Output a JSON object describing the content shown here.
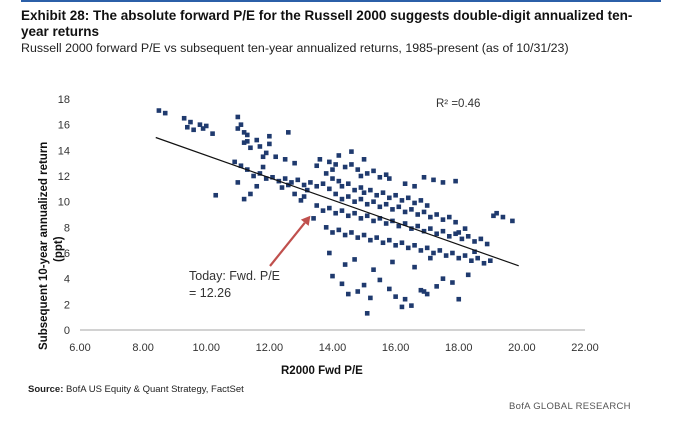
{
  "header": {
    "title": "Exhibit 28: The absolute forward P/E for the Russell 2000 suggests double-digit annualized ten-year returns",
    "subtitle": "Russell 2000 forward P/E vs subsequent ten-year annualized returns, 1985-present (as of 10/31/23)"
  },
  "footer": {
    "source_label": "Source:",
    "source_text": " BofA US Equity & Quant Strategy, FactSet",
    "brand": "BofA GLOBAL RESEARCH"
  },
  "chart_data": {
    "type": "scatter",
    "xlabel": "R2000 Fwd P/E",
    "ylabel_line1": "Subsequent  10-year annualized return",
    "ylabel_line2": "(ppt)",
    "xlim": [
      6,
      22
    ],
    "ylim": [
      0,
      18
    ],
    "x_ticks": [
      "6.00",
      "8.00",
      "10.00",
      "12.00",
      "14.00",
      "16.00",
      "18.00",
      "20.00",
      "22.00"
    ],
    "y_ticks": [
      "0",
      "2",
      "4",
      "6",
      "8",
      "10",
      "12",
      "14",
      "16",
      "18"
    ],
    "r_squared_label": "R² =0.46",
    "annotation_line1": "Today: Fwd. P/E",
    "annotation_line2": "= 12.26",
    "annotation_point": [
      13.3,
      8.9
    ],
    "trendline": [
      [
        8.4,
        15.0
      ],
      [
        19.9,
        5.0
      ]
    ],
    "colors": {
      "points": "#1f3a6e",
      "trendline": "#111111",
      "arrow": "#c0504d"
    },
    "points": [
      [
        8.5,
        17.1
      ],
      [
        8.7,
        16.9
      ],
      [
        9.3,
        16.5
      ],
      [
        9.5,
        16.2
      ],
      [
        9.6,
        15.6
      ],
      [
        9.8,
        16.0
      ],
      [
        9.9,
        15.7
      ],
      [
        10.0,
        15.9
      ],
      [
        10.2,
        15.3
      ],
      [
        9.4,
        15.8
      ],
      [
        11.0,
        16.6
      ],
      [
        11.1,
        16.0
      ],
      [
        11.2,
        15.4
      ],
      [
        11.0,
        15.7
      ],
      [
        11.2,
        14.6
      ],
      [
        11.3,
        15.2
      ],
      [
        11.6,
        14.8
      ],
      [
        11.7,
        14.3
      ],
      [
        12.0,
        14.5
      ],
      [
        11.3,
        14.7
      ],
      [
        11.9,
        13.8
      ],
      [
        12.2,
        13.5
      ],
      [
        12.5,
        13.3
      ],
      [
        12.8,
        13.0
      ],
      [
        12.6,
        15.4
      ],
      [
        12.0,
        15.1
      ],
      [
        11.4,
        14.2
      ],
      [
        11.8,
        13.5
      ],
      [
        10.9,
        13.1
      ],
      [
        11.1,
        12.8
      ],
      [
        11.3,
        12.5
      ],
      [
        11.5,
        12.0
      ],
      [
        11.7,
        12.2
      ],
      [
        11.9,
        11.8
      ],
      [
        12.1,
        11.9
      ],
      [
        12.3,
        11.6
      ],
      [
        12.5,
        11.8
      ],
      [
        12.7,
        11.5
      ],
      [
        12.9,
        11.7
      ],
      [
        13.1,
        11.3
      ],
      [
        13.3,
        11.5
      ],
      [
        13.5,
        11.2
      ],
      [
        13.7,
        11.4
      ],
      [
        13.9,
        11.0
      ],
      [
        11.0,
        11.5
      ],
      [
        11.6,
        11.2
      ],
      [
        12.4,
        11.1
      ],
      [
        10.3,
        10.5
      ],
      [
        11.2,
        10.2
      ],
      [
        11.4,
        10.6
      ],
      [
        13.6,
        13.3
      ],
      [
        13.9,
        13.1
      ],
      [
        14.1,
        12.9
      ],
      [
        14.4,
        12.7
      ],
      [
        14.6,
        12.9
      ],
      [
        14.8,
        12.5
      ],
      [
        15.1,
        12.2
      ],
      [
        15.3,
        12.4
      ],
      [
        15.5,
        11.9
      ],
      [
        15.7,
        12.1
      ],
      [
        13.8,
        12.2
      ],
      [
        14.0,
        11.8
      ],
      [
        14.2,
        11.6
      ],
      [
        14.3,
        11.2
      ],
      [
        14.5,
        11.4
      ],
      [
        14.7,
        10.9
      ],
      [
        14.9,
        11.1
      ],
      [
        15.0,
        10.7
      ],
      [
        15.2,
        10.9
      ],
      [
        15.4,
        10.5
      ],
      [
        15.6,
        10.7
      ],
      [
        15.8,
        10.3
      ],
      [
        16.0,
        10.5
      ],
      [
        16.2,
        10.1
      ],
      [
        16.4,
        10.3
      ],
      [
        16.6,
        9.9
      ],
      [
        16.8,
        10.1
      ],
      [
        17.0,
        9.7
      ],
      [
        14.1,
        10.6
      ],
      [
        14.3,
        10.2
      ],
      [
        14.5,
        10.4
      ],
      [
        14.7,
        10.0
      ],
      [
        14.9,
        10.2
      ],
      [
        15.1,
        9.8
      ],
      [
        15.3,
        10.0
      ],
      [
        15.5,
        9.6
      ],
      [
        15.7,
        9.8
      ],
      [
        15.9,
        9.4
      ],
      [
        16.1,
        9.6
      ],
      [
        16.3,
        9.2
      ],
      [
        16.5,
        9.4
      ],
      [
        16.7,
        9.0
      ],
      [
        16.9,
        9.2
      ],
      [
        17.1,
        8.8
      ],
      [
        17.3,
        9.0
      ],
      [
        17.5,
        8.6
      ],
      [
        17.7,
        8.8
      ],
      [
        17.9,
        8.4
      ],
      [
        13.5,
        9.7
      ],
      [
        13.7,
        9.3
      ],
      [
        13.9,
        9.5
      ],
      [
        14.1,
        9.1
      ],
      [
        14.3,
        9.3
      ],
      [
        14.5,
        8.9
      ],
      [
        14.7,
        9.1
      ],
      [
        14.9,
        8.7
      ],
      [
        15.1,
        8.9
      ],
      [
        15.3,
        8.5
      ],
      [
        15.5,
        8.7
      ],
      [
        15.7,
        8.3
      ],
      [
        15.9,
        8.5
      ],
      [
        16.1,
        8.1
      ],
      [
        16.3,
        8.3
      ],
      [
        16.5,
        7.9
      ],
      [
        16.7,
        8.1
      ],
      [
        16.9,
        7.7
      ],
      [
        17.1,
        7.9
      ],
      [
        17.3,
        7.5
      ],
      [
        17.5,
        7.7
      ],
      [
        17.7,
        7.3
      ],
      [
        17.9,
        7.5
      ],
      [
        18.1,
        7.1
      ],
      [
        18.3,
        7.3
      ],
      [
        18.5,
        6.9
      ],
      [
        18.7,
        7.1
      ],
      [
        18.9,
        6.7
      ],
      [
        18.0,
        7.6
      ],
      [
        18.2,
        7.9
      ],
      [
        13.8,
        8.0
      ],
      [
        14.0,
        7.6
      ],
      [
        14.2,
        7.8
      ],
      [
        14.4,
        7.4
      ],
      [
        14.6,
        7.6
      ],
      [
        14.8,
        7.2
      ],
      [
        15.0,
        7.4
      ],
      [
        15.2,
        7.0
      ],
      [
        15.4,
        7.2
      ],
      [
        15.6,
        6.8
      ],
      [
        15.8,
        7.0
      ],
      [
        16.0,
        6.6
      ],
      [
        16.2,
        6.8
      ],
      [
        16.4,
        6.4
      ],
      [
        16.6,
        6.6
      ],
      [
        16.8,
        6.2
      ],
      [
        17.0,
        6.4
      ],
      [
        17.2,
        6.0
      ],
      [
        17.4,
        6.2
      ],
      [
        17.6,
        5.8
      ],
      [
        17.8,
        6.0
      ],
      [
        18.0,
        5.6
      ],
      [
        18.2,
        5.8
      ],
      [
        18.4,
        5.4
      ],
      [
        18.6,
        5.6
      ],
      [
        18.8,
        5.2
      ],
      [
        19.0,
        5.4
      ],
      [
        18.5,
        6.1
      ],
      [
        19.2,
        9.1
      ],
      [
        19.4,
        8.8
      ],
      [
        19.7,
        8.5
      ],
      [
        19.1,
        8.9
      ],
      [
        15.8,
        11.8
      ],
      [
        16.3,
        11.4
      ],
      [
        16.6,
        11.2
      ],
      [
        17.2,
        11.7
      ],
      [
        17.5,
        11.5
      ],
      [
        17.9,
        11.6
      ],
      [
        16.9,
        11.9
      ],
      [
        14.6,
        13.9
      ],
      [
        15.0,
        13.3
      ],
      [
        14.2,
        13.6
      ],
      [
        14.0,
        4.2
      ],
      [
        14.3,
        3.6
      ],
      [
        14.5,
        2.8
      ],
      [
        14.8,
        3.0
      ],
      [
        15.0,
        3.5
      ],
      [
        15.2,
        2.5
      ],
      [
        15.5,
        3.9
      ],
      [
        15.8,
        3.2
      ],
      [
        16.0,
        2.6
      ],
      [
        16.3,
        2.4
      ],
      [
        16.5,
        1.9
      ],
      [
        16.8,
        3.1
      ],
      [
        17.0,
        2.8
      ],
      [
        17.3,
        3.4
      ],
      [
        17.5,
        4.0
      ],
      [
        17.8,
        3.7
      ],
      [
        18.0,
        2.4
      ],
      [
        18.3,
        4.3
      ],
      [
        15.1,
        1.3
      ],
      [
        16.2,
        1.8
      ],
      [
        16.9,
        3.0
      ],
      [
        14.4,
        5.1
      ],
      [
        15.3,
        4.7
      ],
      [
        15.9,
        5.3
      ],
      [
        16.6,
        4.9
      ],
      [
        17.1,
        5.6
      ],
      [
        13.9,
        6.0
      ],
      [
        14.7,
        5.5
      ],
      [
        14.0,
        12.5
      ],
      [
        13.5,
        12.8
      ],
      [
        14.9,
        12.0
      ],
      [
        13.2,
        10.9
      ],
      [
        12.8,
        10.6
      ],
      [
        13.0,
        10.1
      ],
      [
        13.4,
        8.7
      ],
      [
        13.1,
        10.4
      ],
      [
        12.6,
        11.3
      ],
      [
        11.8,
        12.7
      ]
    ]
  }
}
